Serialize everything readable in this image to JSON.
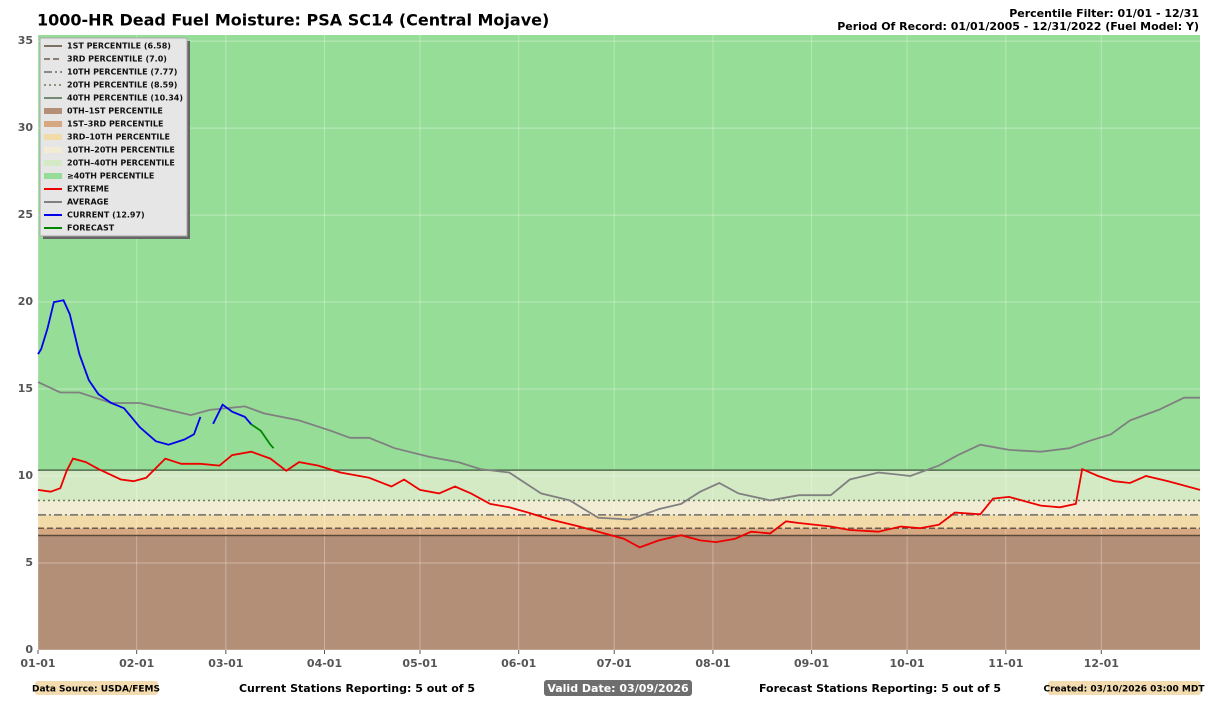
{
  "chart_data": {
    "type": "line",
    "title": "1000-HR Dead Fuel Moisture: PSA SC14 (Central Mojave)",
    "subtitle": [
      "Percentile Filter: 01/01 - 12/31",
      "Period Of Record: 01/01/2005 - 12/31/2022 (Fuel Model: Y)"
    ],
    "footer": {
      "source": "Data Source: USDA/FEMS",
      "current_stations": "Current Stations Reporting: 5 out of 5",
      "valid": "Valid Date: 03/09/2026",
      "forecast_stations": "Forecast Stations Reporting: 5 out of 5",
      "created": "Created: 03/10/2026 03:00 MDT"
    },
    "xlim": [
      0,
      365
    ],
    "ylim": [
      0,
      35.35
    ],
    "xticks": [
      {
        "value": 0,
        "label": "01-01"
      },
      {
        "value": 31,
        "label": "02-01"
      },
      {
        "value": 59,
        "label": "03-01"
      },
      {
        "value": 90,
        "label": "04-01"
      },
      {
        "value": 120,
        "label": "05-01"
      },
      {
        "value": 151,
        "label": "06-01"
      },
      {
        "value": 181,
        "label": "07-01"
      },
      {
        "value": 212,
        "label": "08-01"
      },
      {
        "value": 243,
        "label": "09-01"
      },
      {
        "value": 273,
        "label": "10-01"
      },
      {
        "value": 304,
        "label": "11-01"
      },
      {
        "value": 334,
        "label": "12-01"
      }
    ],
    "yticks": [
      0,
      5,
      10,
      15,
      20,
      25,
      30,
      35
    ],
    "grid": true,
    "legend": "upper left",
    "thresholds": [
      {
        "name": "1ST PERCENTILE (6.58)",
        "value": 6.58,
        "color": "#5a4a3a",
        "dash": "none"
      },
      {
        "name": "3RD PERCENTILE (7.0)",
        "value": 7.0,
        "color": "#6b5a4a",
        "dash": "6 3"
      },
      {
        "name": "10TH PERCENTILE (7.77)",
        "value": 7.77,
        "color": "#6b6b6b",
        "dash": "8 3 2 3"
      },
      {
        "name": "20TH PERCENTILE (8.59)",
        "value": 8.59,
        "color": "#6b7a5a",
        "dash": "2 3"
      },
      {
        "name": "40TH PERCENTILE (10.34)",
        "value": 10.34,
        "color": "#4f6b4f",
        "dash": "none"
      }
    ],
    "bands": [
      {
        "name": "0TH–1ST PERCENTILE",
        "color": "#b48f77"
      },
      {
        "name": "1ST–3RD PERCENTILE",
        "color": "#d6a882"
      },
      {
        "name": "3RD–10TH PERCENTILE",
        "color": "#f2dba8"
      },
      {
        "name": "10TH–20TH PERCENTILE",
        "color": "#f2ecd5"
      },
      {
        "name": "20TH–40TH PERCENTILE",
        "color": "#d3eac5"
      },
      {
        "name": "≥40TH PERCENTILE",
        "color": "#96dd98"
      }
    ],
    "series": [
      {
        "name": "EXTREME",
        "color": "#ee0000",
        "x": [
          0,
          4,
          7,
          9,
          11,
          15,
          19,
          26,
          30,
          34,
          40,
          45,
          51,
          57,
          61,
          67,
          73,
          78,
          82,
          88,
          95,
          104,
          111,
          115,
          120,
          126,
          131,
          136,
          142,
          148,
          154,
          161,
          170,
          176,
          184,
          189,
          195,
          202,
          208,
          213,
          219,
          224,
          230,
          235,
          239,
          249,
          255,
          264,
          271,
          277,
          283,
          288,
          296,
          300,
          305,
          315,
          321,
          326,
          328,
          333,
          338,
          343,
          348,
          355,
          365
        ],
        "values": [
          9.2,
          9.1,
          9.3,
          10.3,
          11.0,
          10.8,
          10.4,
          9.8,
          9.7,
          9.9,
          11.0,
          10.7,
          10.7,
          10.6,
          11.2,
          11.4,
          11.0,
          10.3,
          10.8,
          10.6,
          10.2,
          9.9,
          9.4,
          9.8,
          9.2,
          9.0,
          9.4,
          9.0,
          8.4,
          8.2,
          7.9,
          7.5,
          7.1,
          6.8,
          6.4,
          5.9,
          6.3,
          6.6,
          6.3,
          6.2,
          6.4,
          6.8,
          6.7,
          7.4,
          7.3,
          7.1,
          6.9,
          6.8,
          7.1,
          7.0,
          7.2,
          7.9,
          7.8,
          8.7,
          8.8,
          8.3,
          8.2,
          8.4,
          10.4,
          10.0,
          9.7,
          9.6,
          10.0,
          9.7,
          9.2
        ]
      },
      {
        "name": "AVERAGE",
        "color": "#808080",
        "x": [
          0,
          7,
          13,
          23,
          32,
          41,
          48,
          54,
          65,
          71,
          82,
          92,
          98,
          104,
          112,
          123,
          132,
          139,
          148,
          158,
          167,
          176,
          186,
          195,
          202,
          208,
          214,
          220,
          230,
          239,
          249,
          255,
          264,
          274,
          283,
          289,
          296,
          305,
          315,
          324,
          330,
          337,
          343,
          352,
          360,
          365
        ],
        "values": [
          15.4,
          14.8,
          14.8,
          14.2,
          14.2,
          13.8,
          13.5,
          13.8,
          14.0,
          13.6,
          13.2,
          12.6,
          12.2,
          12.2,
          11.6,
          11.1,
          10.8,
          10.4,
          10.2,
          9.0,
          8.6,
          7.6,
          7.5,
          8.1,
          8.4,
          9.1,
          9.6,
          9.0,
          8.6,
          8.9,
          8.9,
          9.8,
          10.2,
          10.0,
          10.6,
          11.2,
          11.8,
          11.5,
          11.4,
          11.6,
          12.0,
          12.4,
          13.2,
          13.8,
          14.5,
          14.5
        ]
      },
      {
        "name": "CURRENT (12.97)",
        "color": "#0000ee",
        "x": [
          0,
          1,
          3,
          5,
          8,
          10,
          13,
          16,
          19,
          23,
          27,
          32,
          37,
          41,
          46,
          49,
          51,
          53,
          55,
          58,
          61,
          65,
          67
        ],
        "values": [
          17.0,
          17.3,
          18.5,
          20.0,
          20.1,
          19.3,
          17.0,
          15.5,
          14.7,
          14.2,
          13.9,
          12.8,
          12.0,
          11.8,
          12.1,
          12.4,
          13.4,
          null,
          13.0,
          14.1,
          13.7,
          13.4,
          12.97
        ]
      },
      {
        "name": "FORECAST",
        "color": "#008800",
        "x": [
          67,
          70,
          73,
          74
        ],
        "values": [
          12.97,
          12.6,
          11.8,
          11.6
        ]
      }
    ]
  }
}
